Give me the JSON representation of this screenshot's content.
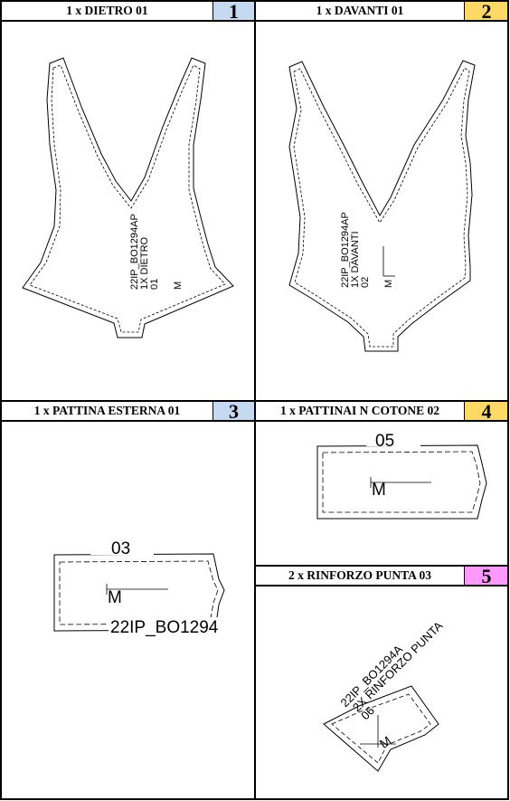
{
  "colors": {
    "badge_blue": "#c5d9f1",
    "badge_yellow": "#ffd966",
    "badge_pink": "#ff99ff"
  },
  "panels": [
    {
      "title": "1 x DIETRO 01",
      "number": "1",
      "badge_color": "#c5d9f1",
      "piece_text": [
        "22IP_BO1294AP",
        "1X DIETRO",
        "01",
        "M"
      ]
    },
    {
      "title": "1 x DAVANTI 01",
      "number": "2",
      "badge_color": "#ffd966",
      "piece_text": [
        "22IP_BO1294AP",
        "1X DAVANTI",
        "02",
        "M"
      ]
    },
    {
      "title": "1 x PATTINA ESTERNA 01",
      "number": "3",
      "badge_color": "#c5d9f1",
      "piece_text": [
        "03",
        "M",
        "22IP_BO1294"
      ]
    },
    {
      "title": "1 x PATTINAI N COTONE 02",
      "number": "4",
      "badge_color": "#ffd966",
      "piece_text": [
        "05",
        "M"
      ]
    },
    {
      "title": "2 x RINFORZO PUNTA 03",
      "number": "5",
      "badge_color": "#ff99ff",
      "piece_text": [
        "22IP_BO1294A",
        "2X RINFORZO PUNTA",
        "06",
        "M"
      ]
    }
  ]
}
